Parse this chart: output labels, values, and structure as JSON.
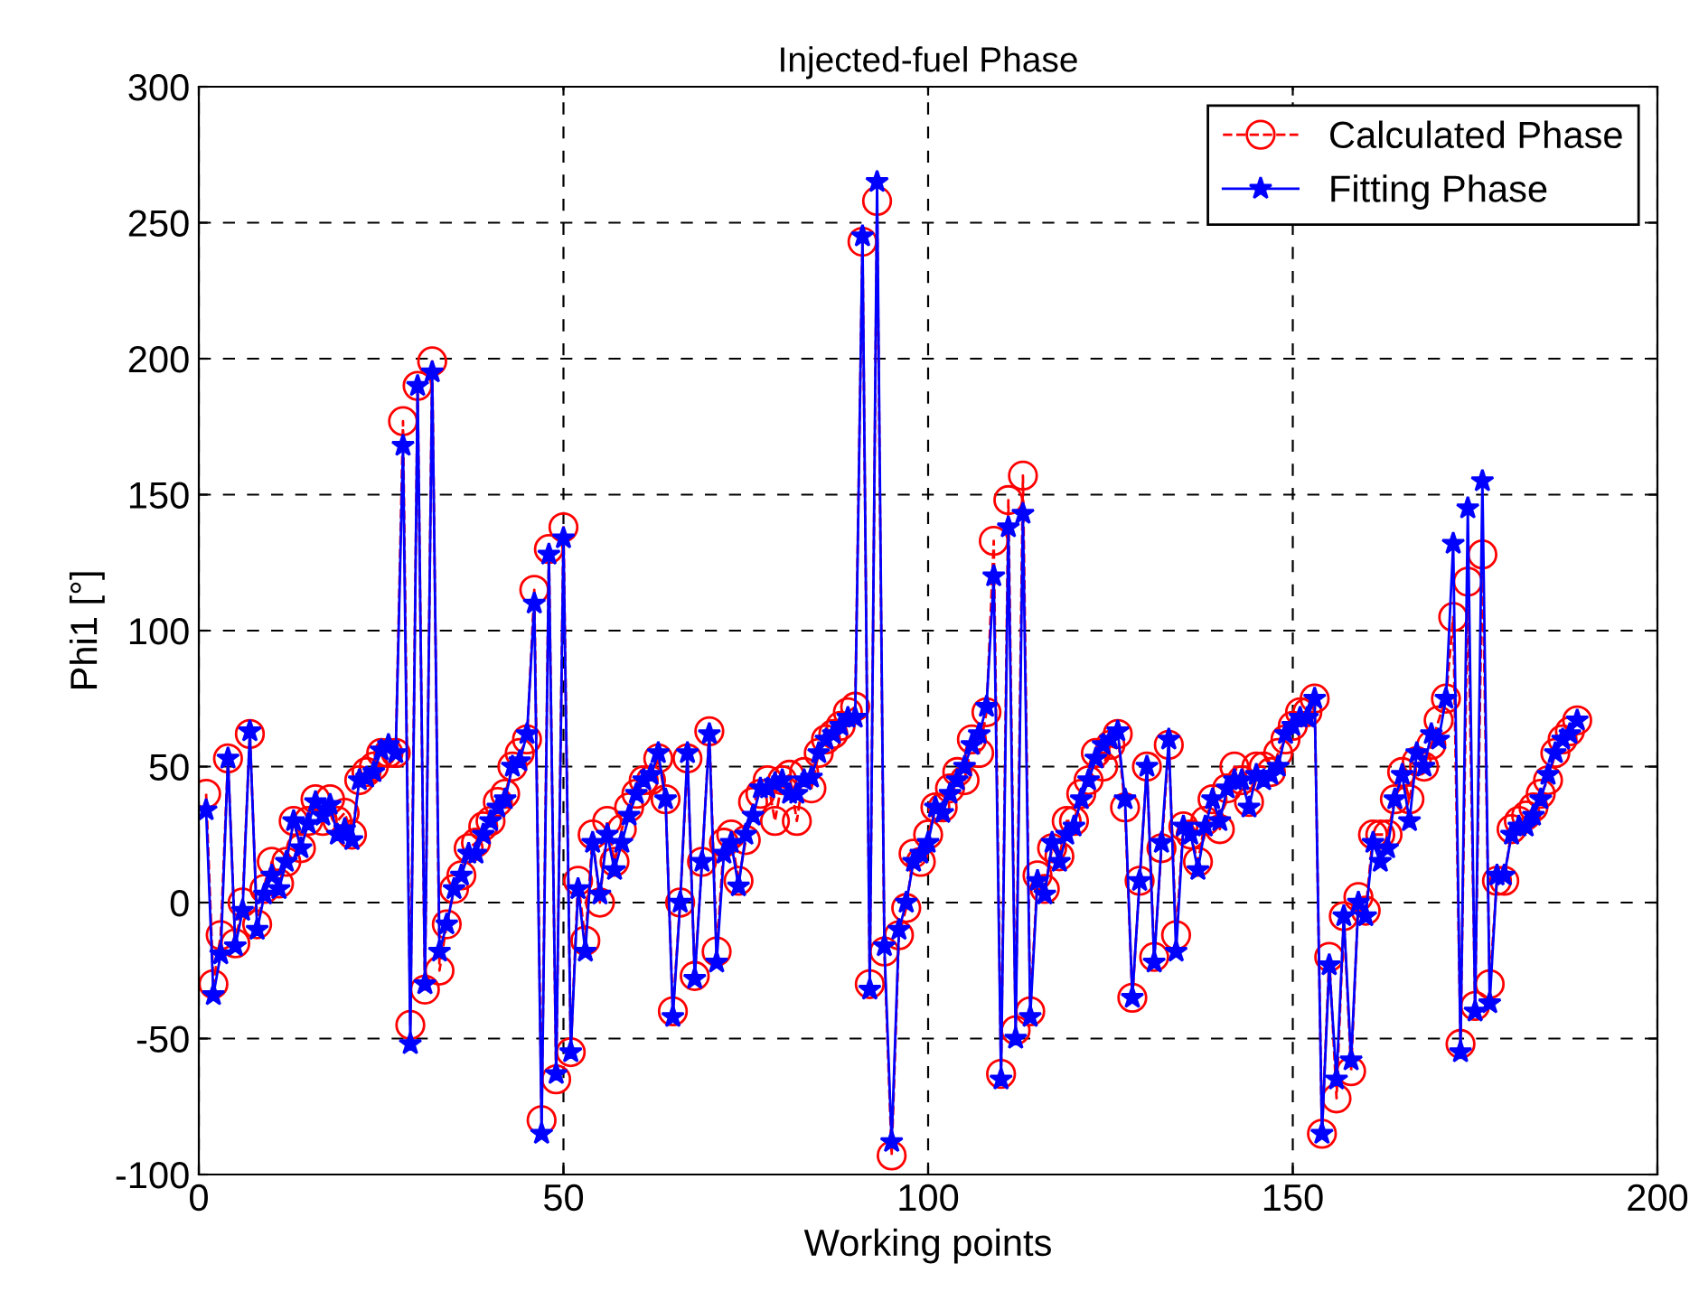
{
  "chart_data": {
    "type": "line",
    "title": "Injected-fuel Phase",
    "xlabel": "Working points",
    "ylabel": "Phi1 [°]",
    "x": [
      1,
      2,
      3,
      4,
      5,
      6,
      7,
      8,
      9,
      10,
      11,
      12,
      13,
      14,
      15,
      16,
      17,
      18,
      19,
      20,
      21,
      22,
      23,
      24,
      25,
      26,
      27,
      28,
      29,
      30,
      31,
      32,
      33,
      34,
      35,
      36,
      37,
      38,
      39,
      40,
      41,
      42,
      43,
      44,
      45,
      46,
      47,
      48,
      49,
      50,
      51,
      52,
      53,
      54,
      55,
      56,
      57,
      58,
      59,
      60,
      61,
      62,
      63,
      64,
      65,
      66,
      67,
      68,
      69,
      70,
      71,
      72,
      73,
      74,
      75,
      76,
      77,
      78,
      79,
      80,
      81,
      82,
      83,
      84,
      85,
      86,
      87,
      88,
      89,
      90,
      91,
      92,
      93,
      94,
      95,
      96,
      97,
      98,
      99,
      100,
      101,
      102,
      103,
      104,
      105,
      106,
      107,
      108,
      109,
      110,
      111,
      112,
      113,
      114,
      115,
      116,
      117,
      118,
      119,
      120,
      121,
      122,
      123,
      124,
      125,
      126,
      127,
      128,
      129,
      130,
      131,
      132,
      133,
      134,
      135,
      136,
      137,
      138,
      139,
      140,
      141,
      142,
      143,
      144,
      145,
      146,
      147,
      148,
      149,
      150,
      151,
      152,
      153,
      154,
      155,
      156,
      157,
      158,
      159,
      160,
      161,
      162,
      163,
      164,
      165,
      166,
      167,
      168,
      169,
      170,
      171,
      172,
      173,
      174,
      175,
      176,
      177,
      178,
      179,
      180,
      181,
      182,
      183,
      184,
      185,
      186,
      187,
      188,
      189
    ],
    "series": [
      {
        "name": "Calculated Phase",
        "color": "#ff0000",
        "marker": "circle",
        "line_style": "dashed",
        "values": [
          40,
          -30,
          -12,
          53,
          -15,
          0,
          62,
          -8,
          5,
          15,
          7,
          15,
          30,
          20,
          30,
          38,
          30,
          38,
          30,
          33,
          25,
          45,
          48,
          50,
          55,
          55,
          55,
          177,
          -45,
          190,
          -32,
          199,
          -25,
          -8,
          5,
          10,
          20,
          22,
          28,
          30,
          37,
          40,
          50,
          55,
          60,
          115,
          -80,
          130,
          -65,
          138,
          -55,
          8,
          -14,
          25,
          0,
          30,
          15,
          27,
          35,
          40,
          45,
          45,
          53,
          38,
          -40,
          0,
          53,
          -27,
          15,
          63,
          -18,
          22,
          25,
          8,
          23,
          37,
          40,
          45,
          30,
          45,
          47,
          30,
          48,
          42,
          55,
          60,
          62,
          65,
          70,
          72,
          243,
          -30,
          258,
          -18,
          -93,
          -12,
          -2,
          18,
          15,
          25,
          35,
          35,
          42,
          48,
          45,
          60,
          55,
          70,
          133,
          -63,
          148,
          -47,
          157,
          -40,
          10,
          5,
          20,
          17,
          30,
          30,
          40,
          45,
          55,
          50,
          58,
          62,
          35,
          -35,
          8,
          50,
          -20,
          20,
          58,
          -12,
          28,
          25,
          15,
          30,
          38,
          27,
          42,
          50,
          45,
          37,
          50,
          50,
          48,
          55,
          60,
          65,
          70,
          70,
          75,
          -85,
          -20,
          -72,
          -5,
          -62,
          2,
          -3,
          25,
          25,
          25,
          38,
          48,
          38,
          52,
          50,
          58,
          67,
          75,
          105,
          -52,
          118,
          -38,
          128,
          -30,
          8,
          8,
          27,
          30,
          32,
          35,
          40,
          45,
          55,
          60,
          63,
          67
        ]
      },
      {
        "name": "Fitting Phase",
        "color": "#0000ff",
        "marker": "star",
        "line_style": "solid",
        "values": [
          34,
          -34,
          -19,
          53,
          -16,
          -3,
          63,
          -10,
          3,
          10,
          5,
          15,
          30,
          20,
          29,
          37,
          32,
          36,
          25,
          27,
          23,
          45,
          46,
          48,
          56,
          58,
          55,
          168,
          -52,
          190,
          -30,
          195,
          -18,
          -8,
          5,
          10,
          18,
          18,
          25,
          30,
          35,
          38,
          50,
          52,
          62,
          110,
          -85,
          128,
          -63,
          134,
          -55,
          5,
          -18,
          22,
          3,
          25,
          12,
          22,
          32,
          40,
          45,
          47,
          55,
          38,
          -42,
          0,
          55,
          -28,
          15,
          62,
          -22,
          18,
          22,
          6,
          25,
          32,
          42,
          42,
          44,
          45,
          40,
          40,
          45,
          46,
          55,
          60,
          62,
          65,
          68,
          68,
          245,
          -32,
          265,
          -16,
          -88,
          -10,
          0,
          15,
          18,
          22,
          35,
          33,
          40,
          45,
          50,
          58,
          62,
          72,
          120,
          -65,
          138,
          -50,
          143,
          -42,
          8,
          3,
          22,
          15,
          25,
          28,
          38,
          45,
          53,
          58,
          60,
          63,
          38,
          -35,
          8,
          50,
          -22,
          22,
          60,
          -18,
          28,
          25,
          12,
          28,
          38,
          30,
          42,
          45,
          45,
          35,
          47,
          45,
          47,
          50,
          62,
          65,
          68,
          68,
          75,
          -85,
          -23,
          -65,
          -5,
          -58,
          0,
          -5,
          22,
          15,
          20,
          38,
          47,
          30,
          55,
          50,
          62,
          60,
          75,
          132,
          -55,
          145,
          -40,
          155,
          -37,
          10,
          10,
          25,
          28,
          28,
          32,
          38,
          47,
          55,
          60,
          62,
          67
        ]
      }
    ],
    "xlim": [
      0,
      200
    ],
    "xticks": [
      0,
      50,
      100,
      150,
      200
    ],
    "ylim": [
      -100,
      300
    ],
    "yticks": [
      -100,
      -50,
      0,
      50,
      100,
      150,
      200,
      250,
      300
    ],
    "grid": true,
    "legend": "top right"
  }
}
